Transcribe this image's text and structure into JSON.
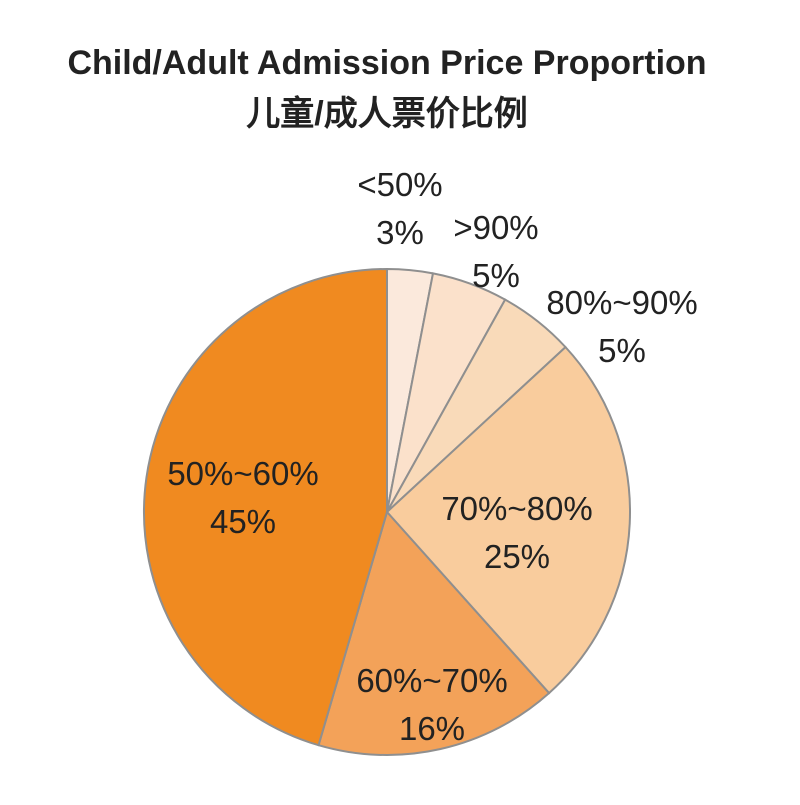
{
  "chart_data": {
    "type": "pie",
    "title": "Child/Adult Admission Price Proportion",
    "subtitle": "儿童/成人票价比例",
    "categories": [
      "<50%",
      ">90%",
      "80%~90%",
      "70%~80%",
      "60%~70%",
      "50%~60%"
    ],
    "values": [
      3,
      5,
      5,
      25,
      16,
      45
    ],
    "value_labels": [
      "3%",
      "5%",
      "5%",
      "25%",
      "16%",
      "45%"
    ],
    "colors": [
      "#fbe9dc",
      "#fbe1cb",
      "#f9dab9",
      "#f9cc9d",
      "#f3a259",
      "#f08a20"
    ],
    "start_angle": "top (12 o'clock)",
    "direction": "clockwise"
  }
}
